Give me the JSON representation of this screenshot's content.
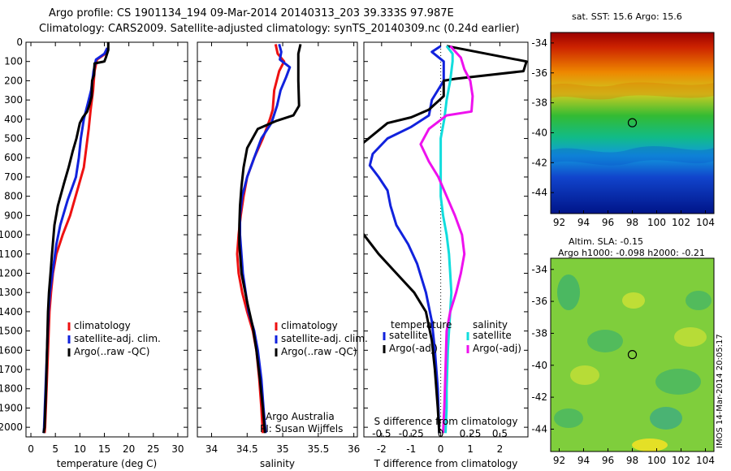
{
  "header": {
    "title_line1": "Argo profile: CS 1901134_194 09-Mar-2014 20140313_203 39.333S 97.987E",
    "title_line2": "Climatology: CARS2009. Satellite-adjusted climatology: synTS_20140309.nc (0.24d earlier)"
  },
  "maps": {
    "sst_title": "sat. SST: 15.6 Argo: 15.6",
    "altim_title": "Altim. SLA: -0.15",
    "argo_heights": "Argo h1000: -0.098 h2000: -0.21",
    "x_ticks": [
      "92",
      "94",
      "96",
      "98",
      "100",
      "102",
      "104"
    ],
    "y_ticks": [
      "-34",
      "-36",
      "-38",
      "-40",
      "-42",
      "-44"
    ],
    "float_marker_lon": 98.0,
    "float_marker_lat": -39.33,
    "stamp": "IMOS 14-Mar-2014 20:05:17"
  },
  "chart_data": [
    {
      "type": "line",
      "xlabel": "temperature (deg C)",
      "xlim": [
        -1,
        32
      ],
      "ylim": [
        2050,
        0
      ],
      "x_ticks": [
        "0",
        "5",
        "10",
        "15",
        "20",
        "25",
        "30"
      ],
      "y_ticks": [
        "0",
        "100",
        "200",
        "300",
        "400",
        "500",
        "600",
        "700",
        "800",
        "900",
        "1000",
        "1100",
        "1200",
        "1300",
        "1400",
        "1500",
        "1600",
        "1700",
        "1800",
        "1900",
        "2000"
      ],
      "legend": [
        "climatology",
        "satellite-adj. clim.",
        "Argo(..raw -QC)"
      ],
      "series": [
        {
          "name": "climatology",
          "color": "#ee1111",
          "points": [
            [
              15.6,
              30
            ],
            [
              15.2,
              60
            ],
            [
              13.5,
              90
            ],
            [
              13,
              150
            ],
            [
              12.7,
              250
            ],
            [
              12.2,
              350
            ],
            [
              11.8,
              450
            ],
            [
              11.3,
              550
            ],
            [
              10.8,
              650
            ],
            [
              9.7,
              750
            ],
            [
              8,
              900
            ],
            [
              6.5,
              1000
            ],
            [
              5.2,
              1100
            ],
            [
              4.5,
              1200
            ],
            [
              4.1,
              1300
            ],
            [
              3.8,
              1400
            ],
            [
              3.5,
              1600
            ],
            [
              3.2,
              1800
            ],
            [
              2.9,
              2000
            ],
            [
              2.8,
              2030
            ]
          ]
        },
        {
          "name": "satellite-adj. clim.",
          "color": "#1122dd",
          "points": [
            [
              15.6,
              30
            ],
            [
              15,
              60
            ],
            [
              13.3,
              90
            ],
            [
              12.8,
              150
            ],
            [
              12.3,
              250
            ],
            [
              11.6,
              320
            ],
            [
              10.8,
              400
            ],
            [
              10.2,
              500
            ],
            [
              9.8,
              600
            ],
            [
              9.2,
              700
            ],
            [
              7.5,
              820
            ],
            [
              6,
              950
            ],
            [
              5.2,
              1050
            ],
            [
              4.4,
              1200
            ],
            [
              3.9,
              1300
            ],
            [
              3.6,
              1400
            ],
            [
              3.3,
              1600
            ],
            [
              3,
              1800
            ],
            [
              2.7,
              2000
            ],
            [
              2.6,
              2030
            ]
          ]
        },
        {
          "name": "Argo(..raw -QC)",
          "color": "#000000",
          "points": [
            [
              15.8,
              0
            ],
            [
              15.8,
              40
            ],
            [
              15.3,
              80
            ],
            [
              15,
              100
            ],
            [
              13,
              110
            ],
            [
              12.9,
              170
            ],
            [
              12.5,
              200
            ],
            [
              12.4,
              280
            ],
            [
              12,
              320
            ],
            [
              11.5,
              360
            ],
            [
              10.6,
              390
            ],
            [
              10,
              420
            ],
            [
              9.3,
              500
            ],
            [
              8.5,
              570
            ],
            [
              7.7,
              650
            ],
            [
              6.8,
              730
            ],
            [
              5.5,
              850
            ],
            [
              4.8,
              950
            ],
            [
              4.3,
              1100
            ],
            [
              4,
              1200
            ],
            [
              3.7,
              1300
            ],
            [
              3.5,
              1400
            ],
            [
              3.3,
              1600
            ],
            [
              3.1,
              1800
            ],
            [
              2.8,
              2000
            ],
            [
              2.6,
              2030
            ]
          ]
        }
      ]
    },
    {
      "type": "line",
      "xlabel": "salinity",
      "xlim": [
        33.8,
        36.05
      ],
      "ylim": [
        2050,
        0
      ],
      "x_ticks": [
        "34",
        "34.5",
        "35",
        "35.5",
        "36"
      ],
      "legend": [
        "climatology",
        "satellite-adj. clim.",
        "Argo(..raw -QC)"
      ],
      "annotation": [
        "Argo Australia",
        "PI: Susan Wijffels"
      ],
      "series": [
        {
          "name": "climatology",
          "color": "#ee1111",
          "points": [
            [
              34.9,
              10
            ],
            [
              34.93,
              60
            ],
            [
              35.02,
              100
            ],
            [
              34.95,
              150
            ],
            [
              34.88,
              250
            ],
            [
              34.86,
              350
            ],
            [
              34.82,
              400
            ],
            [
              34.72,
              500
            ],
            [
              34.6,
              600
            ],
            [
              34.5,
              700
            ],
            [
              34.45,
              800
            ],
            [
              34.41,
              900
            ],
            [
              34.38,
              1000
            ],
            [
              34.36,
              1100
            ],
            [
              34.38,
              1200
            ],
            [
              34.43,
              1300
            ],
            [
              34.5,
              1400
            ],
            [
              34.58,
              1500
            ],
            [
              34.63,
              1600
            ],
            [
              34.67,
              1750
            ],
            [
              34.7,
              1900
            ],
            [
              34.72,
              2030
            ]
          ]
        },
        {
          "name": "satellite-adj. clim.",
          "color": "#1122dd",
          "points": [
            [
              34.95,
              10
            ],
            [
              34.98,
              50
            ],
            [
              34.96,
              90
            ],
            [
              35.1,
              130
            ],
            [
              35.05,
              180
            ],
            [
              34.97,
              250
            ],
            [
              34.92,
              330
            ],
            [
              34.84,
              420
            ],
            [
              34.7,
              500
            ],
            [
              34.6,
              600
            ],
            [
              34.5,
              700
            ],
            [
              34.43,
              800
            ],
            [
              34.4,
              900
            ],
            [
              34.4,
              1000
            ],
            [
              34.44,
              1200
            ],
            [
              34.52,
              1400
            ],
            [
              34.6,
              1500
            ],
            [
              34.65,
              1600
            ],
            [
              34.7,
              1750
            ],
            [
              34.73,
              1900
            ],
            [
              34.76,
              2030
            ]
          ]
        },
        {
          "name": "Argo(..raw -QC)",
          "color": "#000000",
          "points": [
            [
              35.25,
              10
            ],
            [
              35.22,
              60
            ],
            [
              35.22,
              200
            ],
            [
              35.23,
              330
            ],
            [
              35.15,
              380
            ],
            [
              34.9,
              410
            ],
            [
              34.65,
              450
            ],
            [
              34.5,
              550
            ],
            [
              34.45,
              650
            ],
            [
              34.42,
              750
            ],
            [
              34.4,
              850
            ],
            [
              34.39,
              950
            ],
            [
              34.39,
              1050
            ],
            [
              34.42,
              1200
            ],
            [
              34.5,
              1350
            ],
            [
              34.58,
              1480
            ],
            [
              34.63,
              1600
            ],
            [
              34.68,
              1750
            ],
            [
              34.72,
              1900
            ],
            [
              34.75,
              2030
            ]
          ]
        }
      ]
    },
    {
      "type": "line",
      "xlabel": "T difference from climatology",
      "xlabel_top": "S difference from climatology",
      "xlim_T": [
        -2.6,
        2.95
      ],
      "xlim_S": [
        -0.65,
        0.7375
      ],
      "ylim": [
        2050,
        0
      ],
      "x_ticks_T": [
        "-2",
        "-1",
        "0",
        "1",
        "2"
      ],
      "x_ticks_S": [
        "-0.5",
        "-0.25",
        "0",
        "0.25",
        "0.5"
      ],
      "legend_temperature_title": "temperature",
      "legend_salinity_title": "salinity",
      "legend_temperature": [
        "satellite",
        "Argo(-adj)"
      ],
      "legend_salinity": [
        "satellite",
        "Argo(-adj)"
      ],
      "series": [
        {
          "name": "temperature satellite",
          "axis": "T",
          "color": "#1122dd",
          "points": [
            [
              0,
              20
            ],
            [
              -0.3,
              50
            ],
            [
              0.1,
              100
            ],
            [
              0.1,
              200
            ],
            [
              -0.3,
              300
            ],
            [
              -0.4,
              380
            ],
            [
              -1,
              440
            ],
            [
              -1.8,
              500
            ],
            [
              -2.3,
              580
            ],
            [
              -2.4,
              640
            ],
            [
              -2.1,
              700
            ],
            [
              -1.8,
              770
            ],
            [
              -1.7,
              850
            ],
            [
              -1.5,
              950
            ],
            [
              -1.1,
              1050
            ],
            [
              -0.8,
              1150
            ],
            [
              -0.5,
              1300
            ],
            [
              -0.3,
              1450
            ],
            [
              -0.2,
              1600
            ],
            [
              -0.1,
              1800
            ],
            [
              -0.05,
              2030
            ]
          ]
        },
        {
          "name": "temperature Argo(-adj)",
          "axis": "T",
          "color": "#000000",
          "points": [
            [
              0.2,
              20
            ],
            [
              2.9,
              100
            ],
            [
              2.8,
              150
            ],
            [
              0.5,
              190
            ],
            [
              0.1,
              200
            ],
            [
              0.1,
              280
            ],
            [
              -0.4,
              350
            ],
            [
              -1,
              390
            ],
            [
              -1.8,
              420
            ],
            [
              -2.6,
              520
            ],
            [
              -3,
              600
            ],
            [
              -3.3,
              700
            ],
            [
              -3.2,
              800
            ],
            [
              -3,
              900
            ],
            [
              -2.6,
              1000
            ],
            [
              -2.1,
              1100
            ],
            [
              -1.5,
              1200
            ],
            [
              -0.9,
              1300
            ],
            [
              -0.5,
              1400
            ],
            [
              -0.3,
              1550
            ],
            [
              -0.2,
              1700
            ],
            [
              -0.1,
              1900
            ],
            [
              -0.05,
              2030
            ]
          ]
        },
        {
          "name": "salinity satellite",
          "axis": "S",
          "color": "#11dddd",
          "points": [
            [
              0.05,
              20
            ],
            [
              0.1,
              60
            ],
            [
              0.1,
              100
            ],
            [
              0.08,
              200
            ],
            [
              0.05,
              300
            ],
            [
              0.03,
              400
            ],
            [
              0,
              500
            ],
            [
              0,
              600
            ],
            [
              0,
              700
            ],
            [
              0,
              800
            ],
            [
              0.02,
              900
            ],
            [
              0.05,
              1000
            ],
            [
              0.07,
              1100
            ],
            [
              0.08,
              1200
            ],
            [
              0.09,
              1300
            ],
            [
              0.08,
              1400
            ],
            [
              0.07,
              1500
            ],
            [
              0.06,
              1600
            ],
            [
              0.05,
              1800
            ],
            [
              0.05,
              1900
            ],
            [
              0.04,
              2030
            ]
          ]
        },
        {
          "name": "salinity Argo(-adj)",
          "axis": "S",
          "color": "#ee11ee",
          "points": [
            [
              0.08,
              20
            ],
            [
              0.17,
              80
            ],
            [
              0.2,
              140
            ],
            [
              0.25,
              200
            ],
            [
              0.27,
              280
            ],
            [
              0.26,
              360
            ],
            [
              0.05,
              380
            ],
            [
              -0.1,
              450
            ],
            [
              -0.17,
              530
            ],
            [
              -0.1,
              620
            ],
            [
              -0.02,
              700
            ],
            [
              0.05,
              800
            ],
            [
              0.12,
              900
            ],
            [
              0.18,
              1000
            ],
            [
              0.2,
              1100
            ],
            [
              0.17,
              1200
            ],
            [
              0.13,
              1300
            ],
            [
              0.08,
              1400
            ],
            [
              0.05,
              1500
            ],
            [
              0.04,
              1700
            ],
            [
              0.03,
              1900
            ],
            [
              0.02,
              2030
            ]
          ]
        }
      ]
    }
  ]
}
